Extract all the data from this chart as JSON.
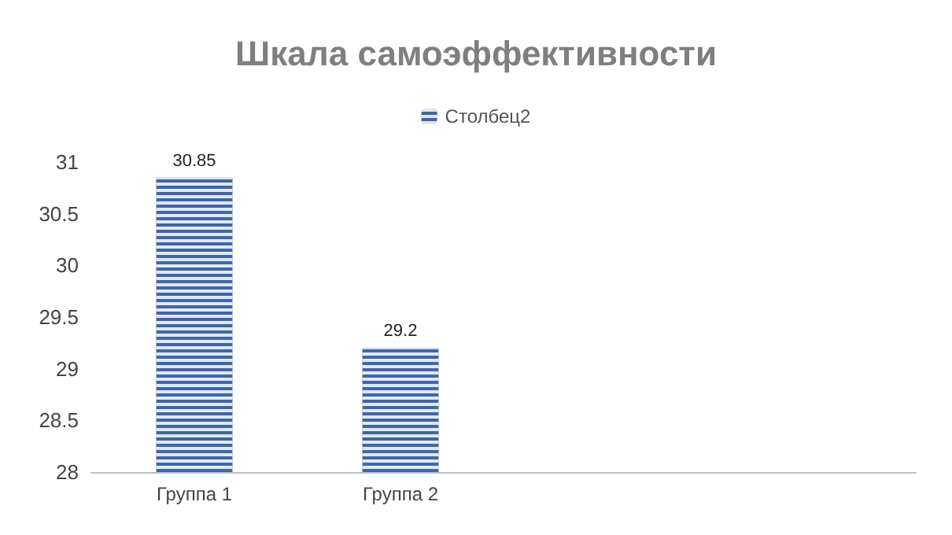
{
  "chart_data": {
    "type": "bar",
    "title": "Шкала самоэффективности",
    "categories": [
      "Группа 1",
      "Группа 2",
      null,
      null
    ],
    "series": [
      {
        "name": "Столбец2",
        "color": "#3f67a8",
        "values": [
          30.85,
          29.2,
          null,
          null
        ]
      }
    ],
    "ylim": [
      28,
      31
    ],
    "yticks": [
      28,
      28.5,
      29,
      29.5,
      30,
      30.5,
      31
    ],
    "grid": false,
    "legend": "top",
    "data_labels": true
  }
}
